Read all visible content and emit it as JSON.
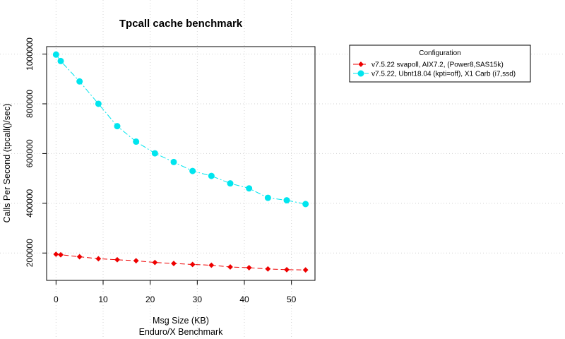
{
  "chart_data": {
    "type": "line",
    "title": "Tpcall cache benchmark",
    "xlabel": "Msg Size (KB)",
    "xlabel2": "Enduro/X Benchmark",
    "ylabel": "Calls Per Second (tpcall()/sec)",
    "xlim": [
      -2,
      55
    ],
    "ylim": [
      90000,
      1030000
    ],
    "xticks": [
      0,
      10,
      20,
      30,
      40,
      50
    ],
    "yticks": [
      200000,
      400000,
      600000,
      800000,
      1000000
    ],
    "grid": true,
    "legend_position": "top-right",
    "legend_title": "Configuration",
    "x": [
      0,
      1,
      5,
      9,
      13,
      17,
      21,
      25,
      29,
      33,
      37,
      41,
      45,
      49,
      53
    ],
    "series": [
      {
        "name": "v7.5.22 svapoll, AIX7.2, (Power8,SAS15k)",
        "color": "#ee0000",
        "marker": "diamond",
        "dash": "long",
        "values": [
          195000,
          193000,
          185000,
          177000,
          173000,
          169000,
          162000,
          158000,
          154000,
          151000,
          144000,
          141000,
          136000,
          133000,
          132000
        ]
      },
      {
        "name": "v7.5.22, Ubnt18.04 (kpti=off), X1 Carb (i7,ssd)",
        "color": "#00e5ee",
        "marker": "circle",
        "dash": "dashdot",
        "values": [
          998000,
          972000,
          890000,
          800000,
          710000,
          648000,
          601000,
          566000,
          530000,
          510000,
          480000,
          460000,
          422000,
          412000,
          397000
        ]
      }
    ]
  }
}
